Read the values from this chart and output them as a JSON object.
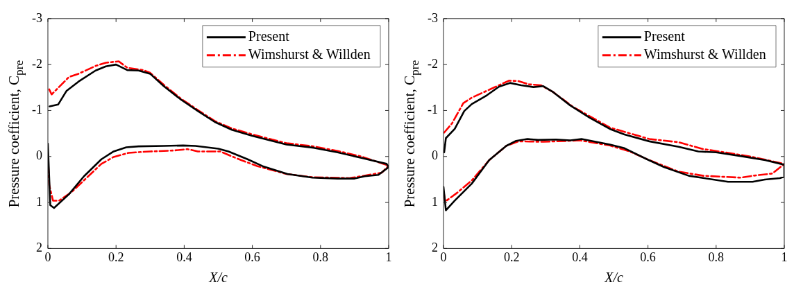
{
  "chart_data": [
    {
      "type": "line",
      "xlabel": "X/c",
      "ylabel": "Pressure coefficient, C$_{pre}$",
      "xlim": [
        0,
        1
      ],
      "ylim": [
        2,
        -3
      ],
      "xticks": [
        0,
        0.2,
        0.4,
        0.6,
        0.8,
        1
      ],
      "yticks": [
        -3,
        -2,
        -1,
        0,
        1,
        2
      ],
      "grid": false,
      "legend": "top right",
      "marker": "none",
      "series": [
        {
          "name": "Present",
          "color": "#000000",
          "line_style": "solid",
          "x": [
            0.005,
            0.03,
            0.055,
            0.09,
            0.14,
            0.17,
            0.2,
            0.233,
            0.266,
            0.3,
            0.34,
            0.39,
            0.44,
            0.49,
            0.54,
            0.6,
            0.7,
            0.78,
            0.85,
            0.92,
            0.994,
            1.0,
            0.97,
            0.93,
            0.9,
            0.85,
            0.776,
            0.703,
            0.63,
            0.586,
            0.53,
            0.5,
            0.433,
            0.397,
            0.34,
            0.266,
            0.23,
            0.193,
            0.157,
            0.106,
            0.062,
            0.018,
            0.007,
            0
          ],
          "values": [
            -1.09,
            -1.13,
            -1.43,
            -1.63,
            -1.87,
            -1.96,
            -2.0,
            -1.88,
            -1.87,
            -1.8,
            -1.53,
            -1.24,
            -0.99,
            -0.75,
            -0.58,
            -0.45,
            -0.26,
            -0.19,
            -0.09,
            0.03,
            0.16,
            0.23,
            0.4,
            0.43,
            0.48,
            0.48,
            0.46,
            0.38,
            0.21,
            0.06,
            -0.11,
            -0.17,
            -0.23,
            -0.24,
            -0.23,
            -0.22,
            -0.2,
            -0.11,
            0.06,
            0.43,
            0.82,
            1.12,
            1.06,
            -0.28
          ]
        },
        {
          "name": "Wimshurst & Willden",
          "color": "#ff0000",
          "line_style": "dashdot",
          "x": [
            0.004,
            0.011,
            0.062,
            0.09,
            0.14,
            0.17,
            0.208,
            0.233,
            0.28,
            0.3,
            0.34,
            0.39,
            0.44,
            0.49,
            0.54,
            0.6,
            0.7,
            0.78,
            0.85,
            0.92,
            1.0,
            0.98,
            0.92,
            0.885,
            0.776,
            0.7,
            0.615,
            0.557,
            0.506,
            0.44,
            0.41,
            0.368,
            0.3,
            0.237,
            0.193,
            0.157,
            0.07,
            0.033,
            0.015,
            0.004,
            0
          ],
          "values": [
            -1.46,
            -1.35,
            -1.73,
            -1.8,
            -1.97,
            -2.04,
            -2.07,
            -1.93,
            -1.88,
            -1.82,
            -1.56,
            -1.26,
            -1.01,
            -0.77,
            -0.61,
            -0.48,
            -0.29,
            -0.22,
            -0.12,
            0.0,
            0.2,
            0.35,
            0.43,
            0.47,
            0.45,
            0.38,
            0.21,
            0.05,
            -0.11,
            -0.11,
            -0.16,
            -0.13,
            -0.11,
            -0.08,
            0.01,
            0.16,
            0.77,
            0.96,
            0.96,
            0.62,
            0.0
          ]
        }
      ]
    },
    {
      "type": "line",
      "xlabel": "X/c",
      "ylabel": "Pressure coefficient, C$_{pre}$",
      "xlim": [
        0,
        1
      ],
      "ylim": [
        2,
        -3
      ],
      "xticks": [
        0,
        0.2,
        0.4,
        0.6,
        0.8,
        1
      ],
      "yticks": [
        -3,
        -2,
        -1,
        0,
        1,
        2
      ],
      "grid": false,
      "legend": "top right",
      "marker": "none",
      "series": [
        {
          "name": "Present",
          "color": "#000000",
          "line_style": "solid",
          "x": [
            0.002,
            0.007,
            0.033,
            0.061,
            0.083,
            0.127,
            0.163,
            0.195,
            0.228,
            0.264,
            0.293,
            0.322,
            0.372,
            0.43,
            0.488,
            0.531,
            0.604,
            0.69,
            0.748,
            0.8,
            0.872,
            0.944,
            1.0,
            1.0,
            0.987,
            0.943,
            0.907,
            0.835,
            0.72,
            0.647,
            0.597,
            0.531,
            0.488,
            0.405,
            0.372,
            0.33,
            0.278,
            0.246,
            0.213,
            0.184,
            0.134,
            0.083,
            0.033,
            0.007,
            0
          ],
          "values": [
            -0.09,
            -0.4,
            -0.6,
            -0.99,
            -1.14,
            -1.33,
            -1.52,
            -1.6,
            -1.55,
            -1.51,
            -1.53,
            -1.4,
            -1.11,
            -0.84,
            -0.6,
            -0.48,
            -0.33,
            -0.21,
            -0.11,
            -0.09,
            -0.01,
            0.08,
            0.18,
            0.44,
            0.47,
            0.5,
            0.55,
            0.55,
            0.42,
            0.23,
            0.06,
            -0.18,
            -0.26,
            -0.38,
            -0.35,
            -0.37,
            -0.36,
            -0.38,
            -0.34,
            -0.23,
            0.08,
            0.59,
            0.96,
            1.17,
            0.66
          ]
        },
        {
          "name": "Wimshurst & Willden",
          "color": "#ff0000",
          "line_style": "dashdot",
          "x": [
            0.002,
            0.025,
            0.058,
            0.083,
            0.148,
            0.192,
            0.22,
            0.25,
            0.286,
            0.322,
            0.38,
            0.488,
            0.604,
            0.69,
            0.763,
            0.835,
            0.907,
            1.0,
            0.965,
            0.907,
            0.872,
            0.763,
            0.69,
            0.604,
            0.546,
            0.488,
            0.401,
            0.293,
            0.22,
            0.184,
            0.134,
            0.083,
            0.04,
            0.005,
            0
          ],
          "values": [
            -0.52,
            -0.72,
            -1.16,
            -1.28,
            -1.5,
            -1.65,
            -1.64,
            -1.57,
            -1.55,
            -1.4,
            -1.08,
            -0.63,
            -0.38,
            -0.31,
            -0.16,
            -0.08,
            0.01,
            0.16,
            0.37,
            0.42,
            0.46,
            0.42,
            0.33,
            0.08,
            -0.11,
            -0.24,
            -0.35,
            -0.32,
            -0.33,
            -0.23,
            0.08,
            0.52,
            0.79,
            0.98,
            0.74
          ]
        }
      ]
    }
  ]
}
